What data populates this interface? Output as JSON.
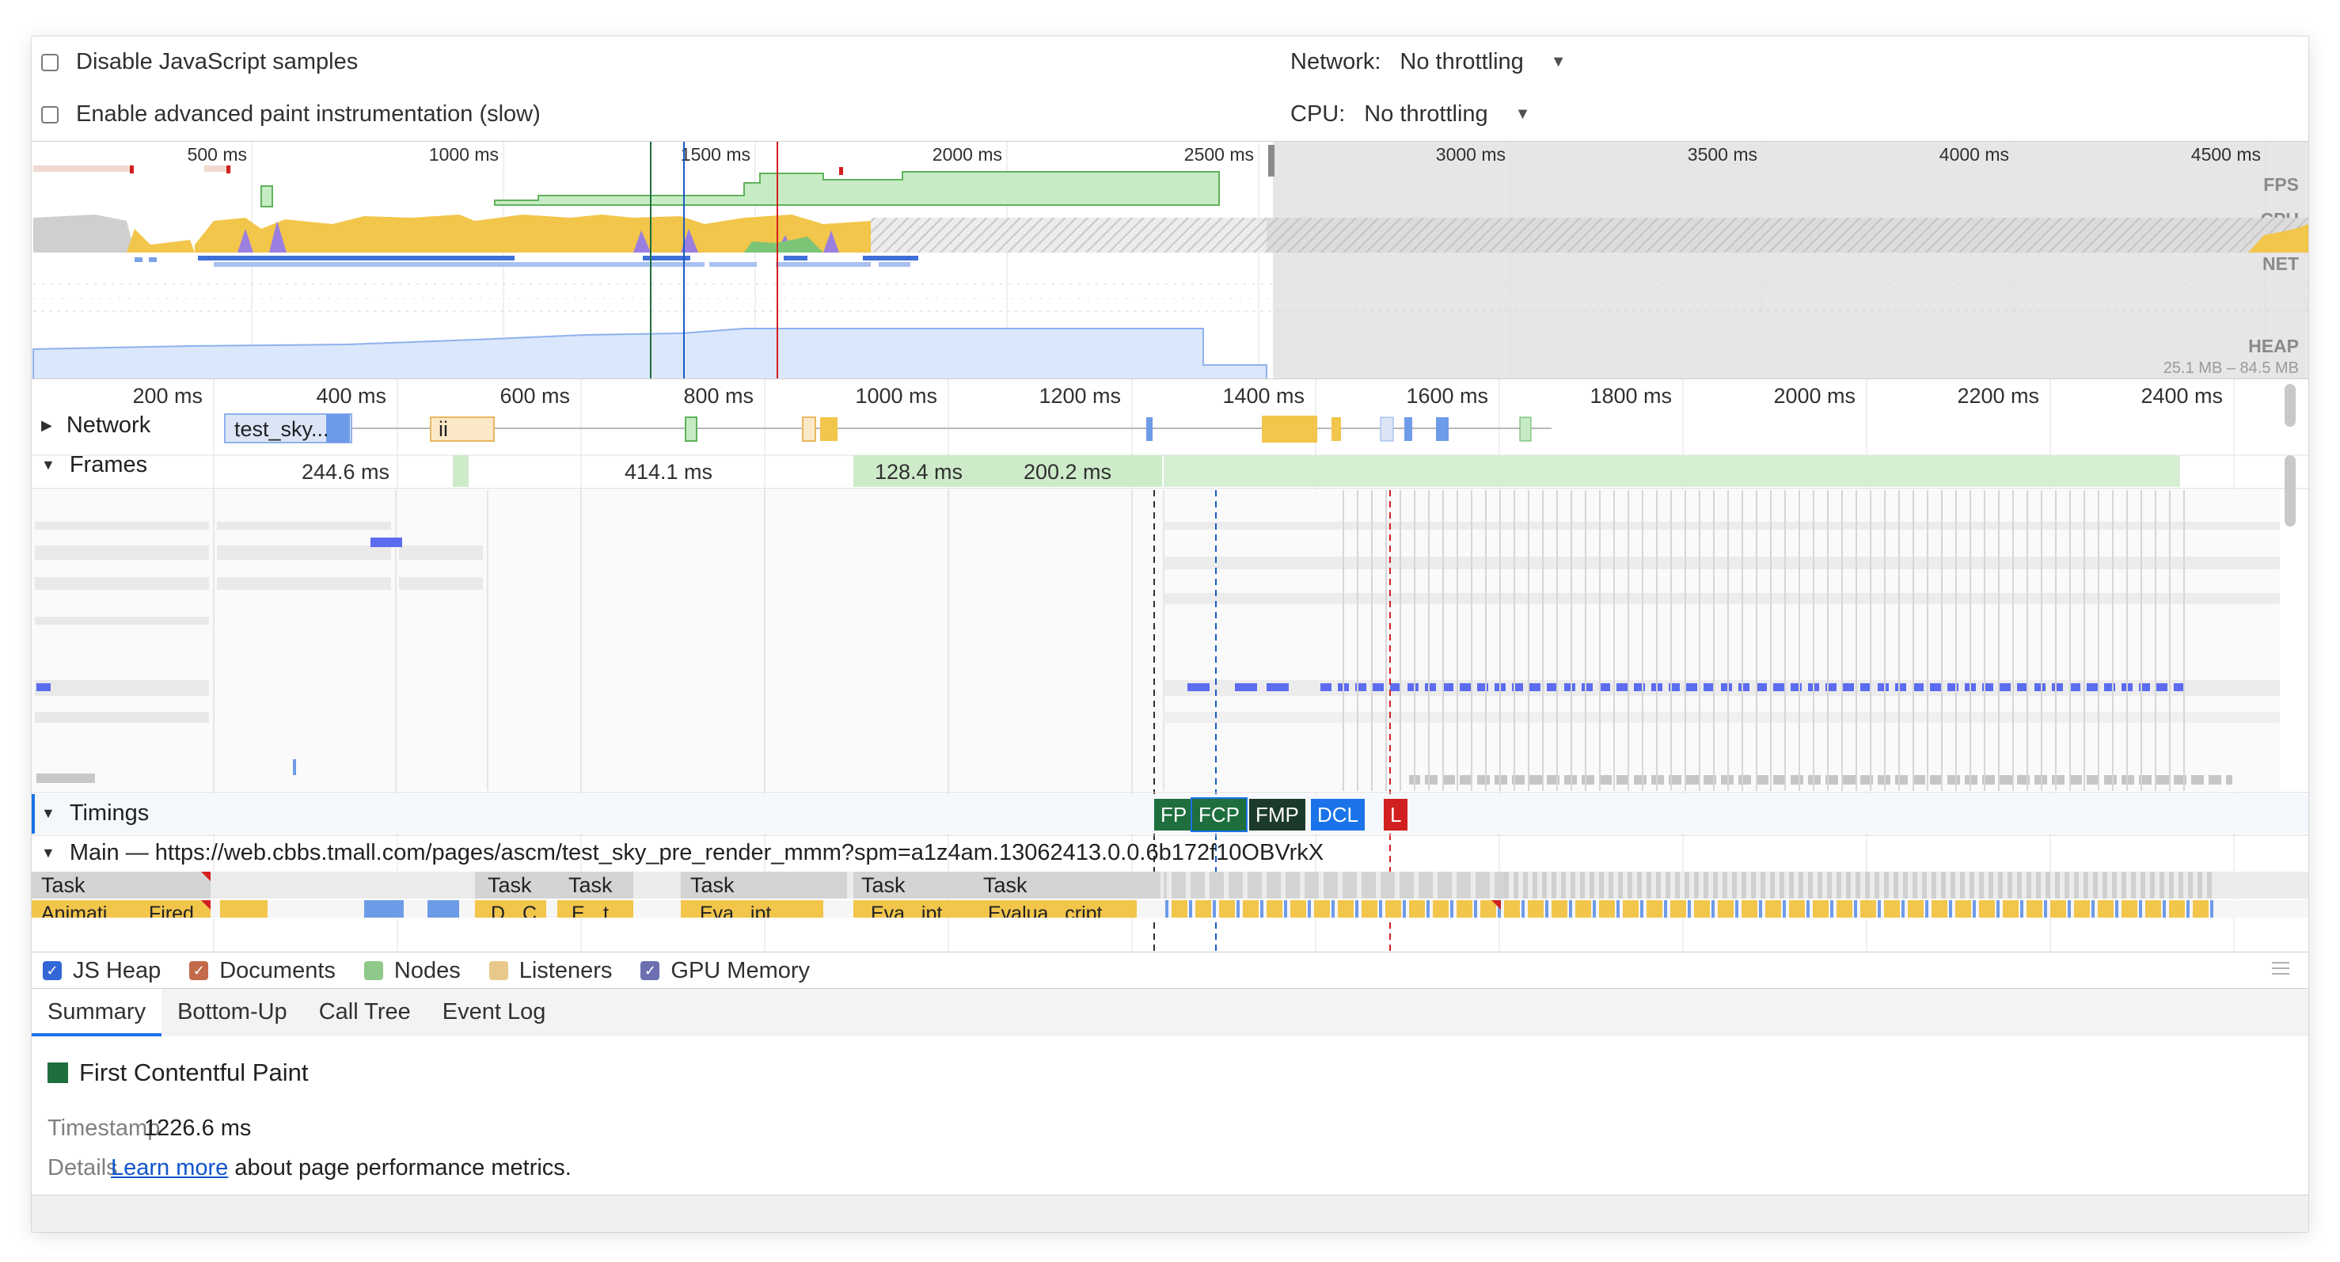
{
  "settings": {
    "disable_js_samples": "Disable JavaScript samples",
    "advanced_paint": "Enable advanced paint instrumentation (slow)",
    "network_label": "Network:",
    "network_value": "No throttling",
    "cpu_label": "CPU:",
    "cpu_value": "No throttling"
  },
  "overview": {
    "ticks": [
      "500 ms",
      "1000 ms",
      "1500 ms",
      "2000 ms",
      "2500 ms",
      "3000 ms",
      "3500 ms",
      "4000 ms",
      "4500 ms"
    ],
    "tracks": {
      "fps": "FPS",
      "cpu": "CPU",
      "net": "NET",
      "heap": "HEAP"
    },
    "heap_range": "25.1 MB – 84.5 MB"
  },
  "timeline": {
    "ticks": [
      "200 ms",
      "400 ms",
      "600 ms",
      "800 ms",
      "1000 ms",
      "1200 ms",
      "1400 ms",
      "1600 ms",
      "1800 ms",
      "2000 ms",
      "2200 ms",
      "2400 ms"
    ],
    "network_label": "Network",
    "network_request": "test_sky...",
    "network_request_2": "ii",
    "frames_label": "Frames",
    "frame_durations": [
      "244.6 ms",
      "414.1 ms",
      "128.4 ms",
      "200.2 ms"
    ],
    "timings_label": "Timings",
    "markers": {
      "fp": "FP",
      "fcp": "FCP",
      "fmp": "FMP",
      "dcl": "DCL",
      "l": "L"
    },
    "main_label": "Main — https://web.cbbs.tmall.com/pages/ascm/test_sky_pre_render_mmm?spm=a1z4am.13062413.0.0.6b172f10OBVrkX",
    "task_label": "Task",
    "sub_tasks": [
      "Animati...",
      "Fired",
      "D...",
      "C...",
      "E...",
      "t",
      "Eva...ipt",
      "Eva...ipt",
      "Evalua...cript"
    ]
  },
  "counters": [
    {
      "label": "JS Heap",
      "color": "#3367d6",
      "checked": true
    },
    {
      "label": "Documents",
      "color": "#c36a4a",
      "checked": true
    },
    {
      "label": "Nodes",
      "color": "#8ec98a",
      "checked": false
    },
    {
      "label": "Listeners",
      "color": "#e9c98a",
      "checked": false
    },
    {
      "label": "GPU Memory",
      "color": "#6b6fb0",
      "checked": true
    }
  ],
  "tabs": [
    "Summary",
    "Bottom-Up",
    "Call Tree",
    "Event Log"
  ],
  "summary": {
    "title": "First Contentful Paint",
    "timestamp_key": "Timestamp",
    "timestamp_value": "1226.6 ms",
    "details_key": "Details",
    "details_link": "Learn more",
    "details_text": "about page performance metrics."
  },
  "colors": {
    "scripting": "#f2c54b",
    "rendering": "#9b7fe0",
    "painting": "#7cc576",
    "idle": "#cfcfcf",
    "fp": "#1e6e3e",
    "fcp": "#1e6e3e",
    "fmp": "#1c3a2a",
    "dcl": "#1a73e8",
    "load": "#d21f1f"
  }
}
